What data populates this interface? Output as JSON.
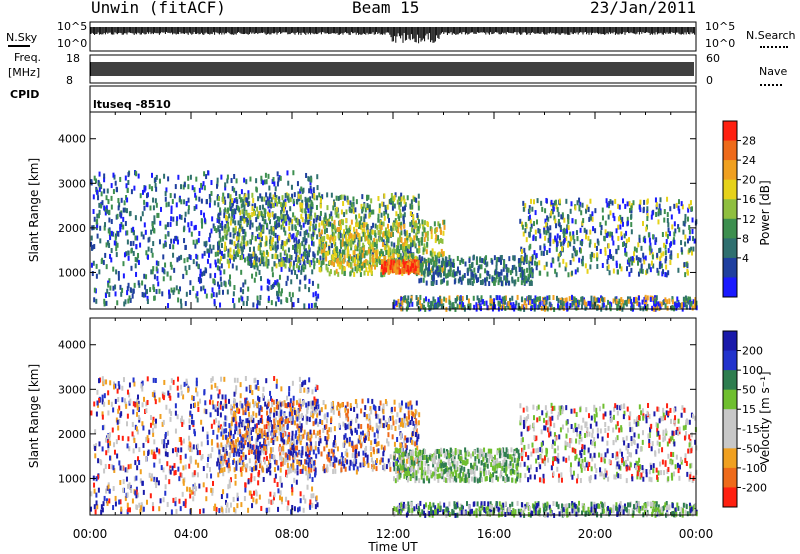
{
  "header": {
    "radar": "Unwin (fitACF)",
    "beam": "Beam 15",
    "date": "23/Jan/2011"
  },
  "strips": {
    "nsky": {
      "label": "N.Sky",
      "tick_hi": "10^5",
      "tick_lo": "10^0"
    },
    "nsearch": {
      "label": "N.Search",
      "tick_hi": "10^5",
      "tick_lo": "10^0"
    },
    "freq": {
      "label_top": "Freq.",
      "label_bottom": "[MHz]",
      "tick_hi": "18",
      "tick_lo": "8"
    },
    "nave": {
      "label": "Nave",
      "tick_hi": "60",
      "tick_lo": "0"
    },
    "cpid": {
      "label": "CPID",
      "value": "ltuseq -8510"
    }
  },
  "colors": {
    "power_scale": [
      "#1a1aff",
      "#1f3f9f",
      "#2f6f6f",
      "#3d8f4f",
      "#8fbf3f",
      "#e6d21a",
      "#f0a020",
      "#ee6a1a",
      "#ff2010"
    ],
    "velocity_scale": [
      "#1a1aaa",
      "#2233cc",
      "#2e7d4f",
      "#6fbf2f",
      "#c8c8c8",
      "#c8c8c8",
      "#f0a020",
      "#ee6a1a",
      "#ff2010"
    ]
  },
  "chart_data": [
    {
      "type": "heatmap",
      "name": "power",
      "title": "",
      "xlabel": "",
      "ylabel": "Slant Range [km]",
      "x_ticks": [
        "00:00",
        "04:00",
        "08:00",
        "12:00",
        "16:00",
        "20:00",
        "00:00"
      ],
      "xlim_hours": [
        0,
        24
      ],
      "y_ticks": [
        1000,
        2000,
        3000,
        4000
      ],
      "ylim": [
        180,
        4600
      ],
      "colorbar": {
        "label": "Power [dB]",
        "ticks": [
          4,
          8,
          12,
          16,
          20,
          24,
          28
        ],
        "range": [
          0,
          30
        ]
      }
    },
    {
      "type": "heatmap",
      "name": "velocity",
      "title": "",
      "xlabel": "Time UT",
      "ylabel": "Slant Range [km]",
      "x_ticks": [
        "00:00",
        "04:00",
        "08:00",
        "12:00",
        "16:00",
        "20:00",
        "00:00"
      ],
      "xlim_hours": [
        0,
        24
      ],
      "y_ticks": [
        1000,
        2000,
        3000,
        4000
      ],
      "ylim": [
        180,
        4600
      ],
      "colorbar": {
        "label": "Velocity [m s⁻¹]",
        "ticks": [
          200,
          100,
          50,
          15,
          -15,
          -50,
          -100,
          -200
        ]
      }
    }
  ]
}
